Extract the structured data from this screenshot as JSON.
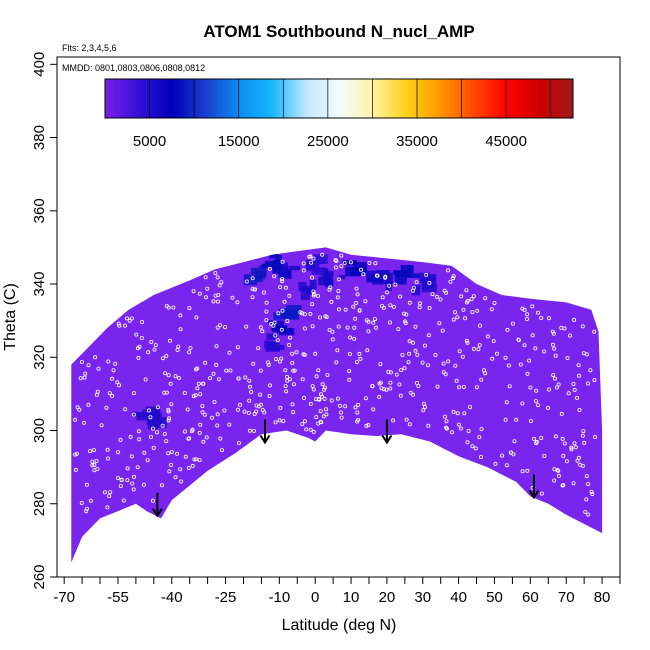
{
  "chart_data": {
    "type": "heatmap",
    "title": "ATOM1 Southbound N_nucl_AMP",
    "flights_note": "Flts: 2,3,4,5,6",
    "dates_note": "MMDD: 0801,0803,0806,0808,0812",
    "xlabel": "Latitude (deg N)",
    "ylabel": "Theta (C)",
    "xlim": [
      -72,
      85
    ],
    "ylim": [
      260,
      402
    ],
    "x_ticks": [
      -70,
      -55,
      -40,
      -25,
      -10,
      0,
      10,
      20,
      30,
      40,
      50,
      60,
      70,
      80
    ],
    "x_tick_labels": [
      "-70",
      "-55",
      "-40",
      "-25",
      "-10",
      "0",
      "10",
      "20",
      "30",
      "40",
      "50",
      "60",
      "70",
      "80"
    ],
    "x_minor_ticks": [
      -65,
      -60,
      -50,
      -45,
      -35,
      -30,
      -20,
      -15,
      -5,
      5,
      15,
      25,
      35,
      45,
      55,
      65,
      75,
      85
    ],
    "y_ticks": [
      260,
      280,
      300,
      320,
      340,
      360,
      380,
      400
    ],
    "y_tick_labels": [
      "260",
      "280",
      "300",
      "320",
      "340",
      "360",
      "380",
      "400"
    ],
    "colorbar": {
      "range": [
        0,
        52500
      ],
      "ticks": [
        5000,
        15000,
        25000,
        35000,
        45000
      ],
      "tick_labels": [
        "5000",
        "15000",
        "25000",
        "35000",
        "45000"
      ],
      "stops": [
        "#7a1fe8",
        "#3311d8",
        "#0000b8",
        "#1a3fd0",
        "#0a8cf0",
        "#19b6ff",
        "#bfe6ff",
        "#f4fbff",
        "#fff4a8",
        "#ffd21a",
        "#ff9a00",
        "#ff4a00",
        "#ff0000",
        "#cc0000",
        "#a01818"
      ]
    },
    "background_value": 1200,
    "background_color": "#7a25ee",
    "data_boundary": [
      [
        -68,
        264
      ],
      [
        -65,
        271
      ],
      [
        -60,
        276
      ],
      [
        -55,
        278
      ],
      [
        -50,
        280
      ],
      [
        -47,
        278
      ],
      [
        -43,
        276
      ],
      [
        -40,
        281
      ],
      [
        -35,
        285
      ],
      [
        -30,
        289
      ],
      [
        -22,
        294
      ],
      [
        -15,
        299
      ],
      [
        -8,
        300
      ],
      [
        -2,
        298
      ],
      [
        0,
        297
      ],
      [
        3,
        300
      ],
      [
        10,
        299
      ],
      [
        17,
        298.5
      ],
      [
        24,
        299
      ],
      [
        32,
        297
      ],
      [
        40,
        293
      ],
      [
        48,
        290
      ],
      [
        56,
        286
      ],
      [
        60,
        282
      ],
      [
        65,
        280
      ],
      [
        70,
        277
      ],
      [
        76,
        274
      ],
      [
        80,
        272
      ],
      [
        80,
        300
      ],
      [
        79,
        327
      ],
      [
        77,
        333
      ],
      [
        70,
        335
      ],
      [
        60,
        336
      ],
      [
        52,
        337
      ],
      [
        45,
        340
      ],
      [
        38,
        345
      ],
      [
        30,
        346
      ],
      [
        20,
        347
      ],
      [
        10,
        348
      ],
      [
        3,
        350
      ],
      [
        -5,
        349
      ],
      [
        -12,
        348
      ],
      [
        -20,
        346
      ],
      [
        -28,
        344
      ],
      [
        -35,
        341
      ],
      [
        -45,
        337
      ],
      [
        -52,
        333
      ],
      [
        -58,
        328
      ],
      [
        -64,
        322
      ],
      [
        -68,
        318
      ]
    ],
    "high_cells": [
      {
        "lat": -16,
        "theta": 342,
        "value": 9000
      },
      {
        "lat": -12,
        "theta": 346,
        "value": 8000
      },
      {
        "lat": -7,
        "theta": 343,
        "value": 6000
      },
      {
        "lat": -3,
        "theta": 338,
        "value": 5000
      },
      {
        "lat": -8,
        "theta": 332,
        "value": 9000
      },
      {
        "lat": -10,
        "theta": 328,
        "value": 7000
      },
      {
        "lat": -13,
        "theta": 324,
        "value": 5000
      },
      {
        "lat": 5,
        "theta": 342,
        "value": 6000
      },
      {
        "lat": 12,
        "theta": 344,
        "value": 7000
      },
      {
        "lat": 18,
        "theta": 341,
        "value": 6000
      },
      {
        "lat": 25,
        "theta": 343,
        "value": 8000
      },
      {
        "lat": 30,
        "theta": 340,
        "value": 5000
      },
      {
        "lat": -47,
        "theta": 303,
        "value": 5000
      },
      {
        "lat": -44,
        "theta": 304,
        "value": 5000
      },
      {
        "lat": 0,
        "theta": 345,
        "value": 4500
      }
    ],
    "arrows": [
      {
        "lat": -44,
        "theta_top": 283,
        "theta_bottom": 277
      },
      {
        "lat": -14,
        "theta_top": 303,
        "theta_bottom": 297
      },
      {
        "lat": 20,
        "theta_top": 303,
        "theta_bottom": 297
      },
      {
        "lat": 61,
        "theta_top": 288,
        "theta_bottom": 282
      }
    ],
    "legend": "top-center colorbar",
    "grid": false
  }
}
